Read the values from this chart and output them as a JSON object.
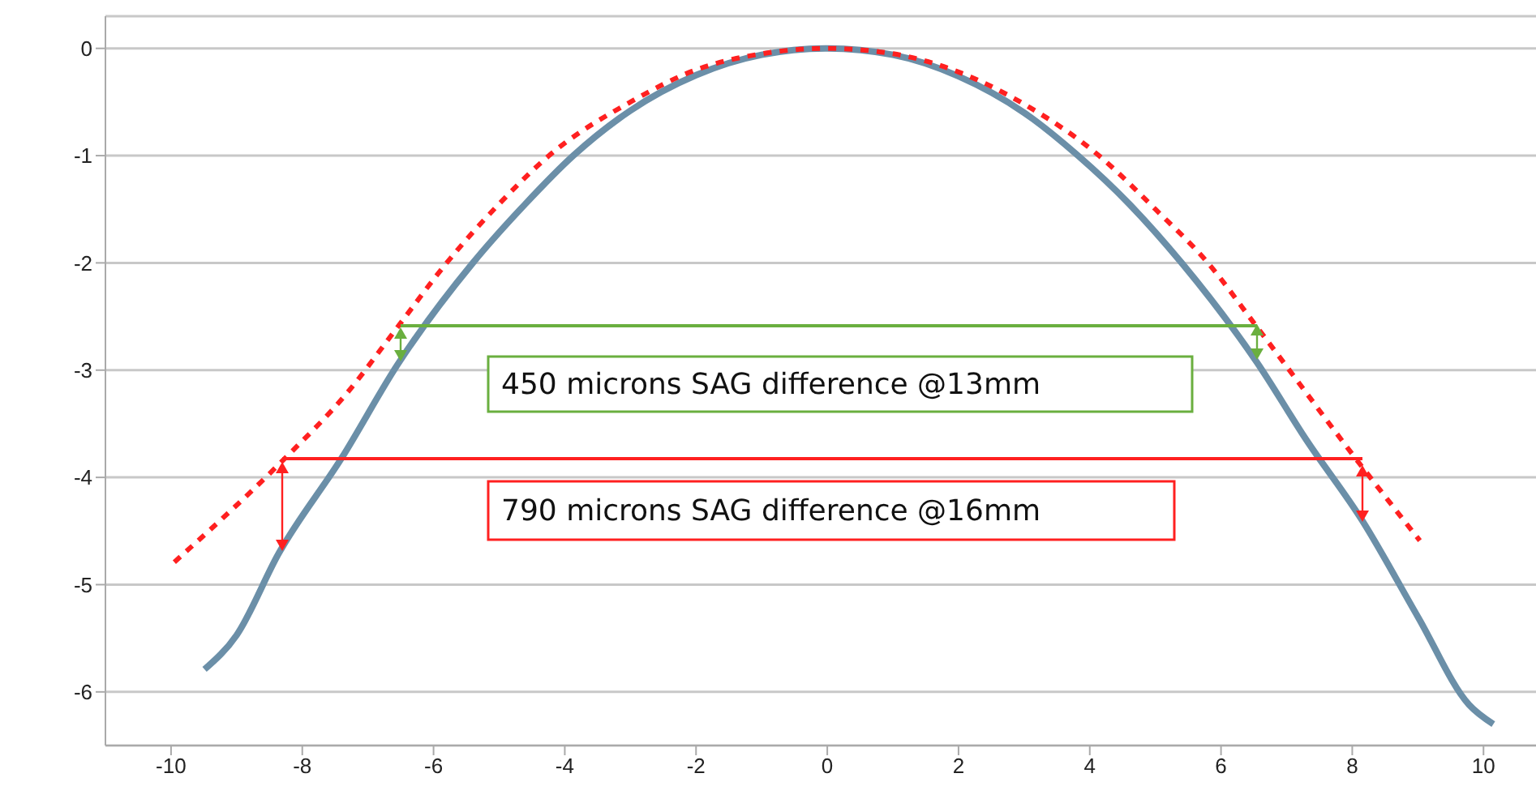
{
  "chart_data": {
    "type": "line",
    "xlim": [
      -11,
      10.8
    ],
    "xticks": [
      -10,
      -8,
      -6,
      -4,
      -2,
      0,
      2,
      4,
      6,
      8,
      10
    ],
    "ylim": [
      -6.5,
      0.3
    ],
    "yticks": [
      -6,
      -5,
      -4,
      -3,
      -2,
      -1,
      0
    ],
    "grid": "y",
    "marker": "none",
    "series": [
      {
        "color": "#6b8fa8",
        "line_style": "solid",
        "x": [
          -9.49,
          -9.0,
          -8.36,
          -7.39,
          -6.55,
          -5.4,
          -4.6,
          -3.87,
          -3,
          -2,
          -1,
          0,
          1,
          2,
          3,
          3.82,
          4.6,
          5.4,
          6.55,
          7.3,
          8.16,
          9,
          9.78,
          10.15
        ],
        "values": [
          -5.79,
          -5.47,
          -4.71,
          -3.81,
          -2.95,
          -2,
          -1.45,
          -1,
          -0.58,
          -0.25,
          -0.06,
          0,
          -0.06,
          -0.26,
          -0.6,
          -1,
          -1.45,
          -2,
          -2.93,
          -3.65,
          -4.41,
          -5.3,
          -6.12,
          -6.3
        ]
      },
      {
        "color": "#ff2020",
        "line_style": "dashed",
        "x": [
          -9.95,
          -8.36,
          -7.3,
          -6.55,
          -5.8,
          -5,
          -4.24,
          -3,
          -2,
          -1,
          0,
          1,
          2,
          3,
          4.14,
          5,
          5.8,
          6.55,
          8.16,
          9.03
        ],
        "values": [
          -4.79,
          -3.88,
          -3.2,
          -2.6,
          -2,
          -1.45,
          -1,
          -0.5,
          -0.2,
          -0.05,
          0,
          -0.05,
          -0.22,
          -0.52,
          -1,
          -1.5,
          -2,
          -2.6,
          -3.91,
          -4.59
        ]
      }
    ],
    "annotations": [
      "450 microns SAG difference @13mm",
      "790 microns SAG difference @16mm"
    ]
  }
}
